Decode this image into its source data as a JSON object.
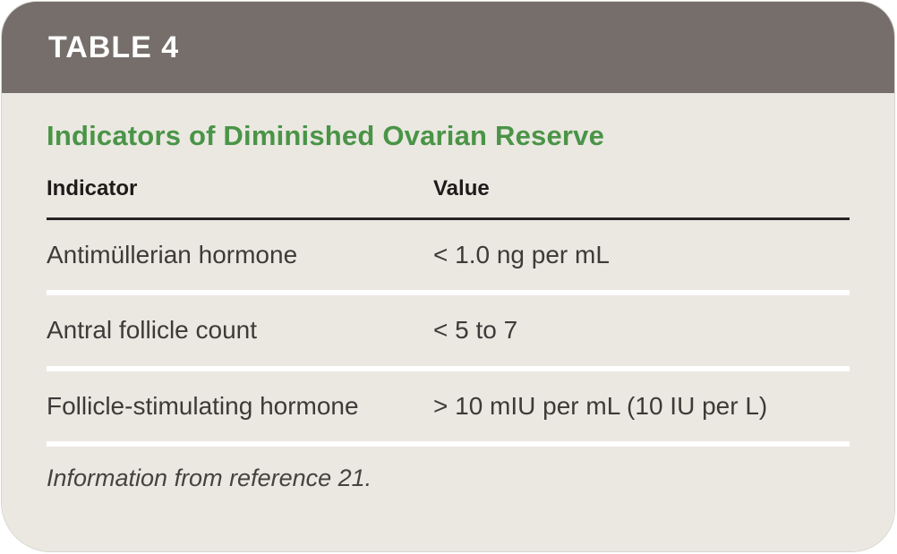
{
  "card": {
    "table_label": "TABLE 4",
    "title": "Indicators of Diminished Ovarian Reserve",
    "columns": [
      "Indicator",
      "Value"
    ],
    "rows": [
      {
        "indicator": "Antimüllerian hormone",
        "value": "< 1.0 ng per mL"
      },
      {
        "indicator": "Antral follicle count",
        "value": "< 5 to 7"
      },
      {
        "indicator": "Follicle-stimulating hormone",
        "value": "> 10 mIU per mL (10 IU per L)"
      }
    ],
    "footnote": "Information from reference 21.",
    "colors": {
      "header_bg": "#756e6a",
      "body_bg": "#eae8e1",
      "title_green": "#4a9447",
      "header_rule": "#282323",
      "row_separator": "#ffffff",
      "text_dark": "#1e1b1b",
      "text_body": "#3d3a38",
      "header_text": "#ffffff"
    }
  }
}
